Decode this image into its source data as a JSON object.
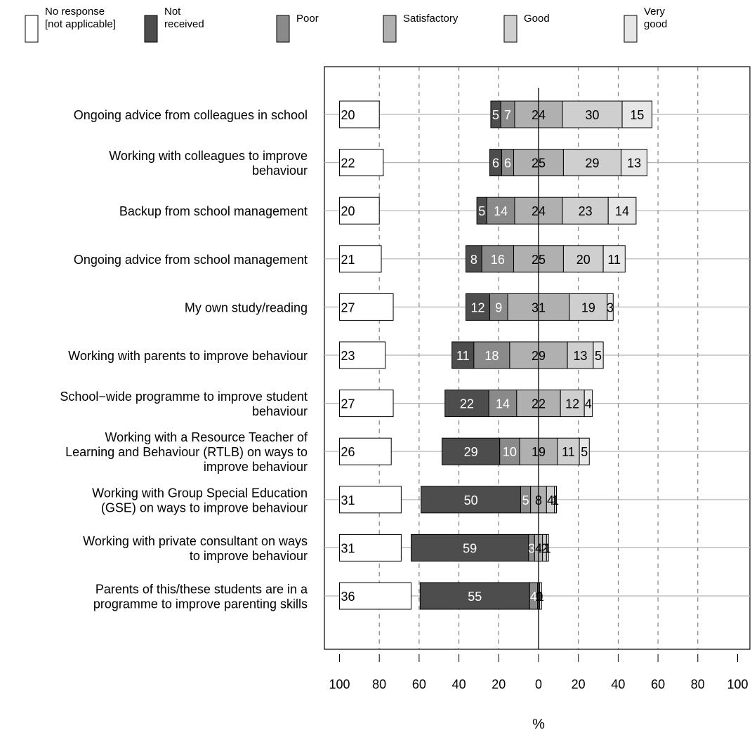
{
  "chart_data": {
    "type": "bar",
    "layout": "diverging-stacked-horizontal",
    "title": "",
    "xlabel": "%",
    "ylabel": "",
    "xlim": [
      -100,
      100
    ],
    "x_ticks": [
      -100,
      -80,
      -60,
      -40,
      -20,
      0,
      20,
      40,
      60,
      80,
      100
    ],
    "x_tick_labels": [
      "100",
      "80",
      "60",
      "40",
      "20",
      "0",
      "20",
      "40",
      "60",
      "80",
      "100"
    ],
    "grid": "dashed vertical lines at ±20, ±40, ±60, ±80",
    "legend_position": "top",
    "legend": [
      {
        "lines": [
          "No response",
          "[not applicable]"
        ],
        "color": "#ffffff"
      },
      {
        "lines": [
          "Not",
          "received"
        ],
        "color": "#4d4d4d"
      },
      {
        "lines": [
          "Poor"
        ],
        "color": "#8a8a8a"
      },
      {
        "lines": [
          "Satisfactory"
        ],
        "color": "#b0b0b0"
      },
      {
        "lines": [
          "Good"
        ],
        "color": "#cfcfcf"
      },
      {
        "lines": [
          "Very",
          "good"
        ],
        "color": "#e6e6e6"
      }
    ],
    "series": [
      {
        "name": "Not received",
        "color": "#4d4d4d",
        "label_color": "#ffffff",
        "side": "negative"
      },
      {
        "name": "Poor",
        "color": "#8a8a8a",
        "label_color": "#ffffff",
        "side": "negative"
      },
      {
        "name": "Satisfactory",
        "color": "#b0b0b0",
        "label_color": "#000000",
        "side": "centered"
      },
      {
        "name": "Good",
        "color": "#cfcfcf",
        "label_color": "#000000",
        "side": "positive"
      },
      {
        "name": "Very good",
        "color": "#e6e6e6",
        "label_color": "#000000",
        "side": "positive"
      }
    ],
    "no_response_series": {
      "name": "No response [not applicable]",
      "color": "#ffffff"
    },
    "categories": [
      {
        "lines": [
          "Ongoing advice from colleagues in school"
        ],
        "no_response": 20,
        "values": [
          5,
          7,
          24,
          30,
          15
        ]
      },
      {
        "lines": [
          "Working with colleagues to improve",
          "behaviour"
        ],
        "no_response": 22,
        "values": [
          6,
          6,
          25,
          29,
          13
        ]
      },
      {
        "lines": [
          "Backup from school management"
        ],
        "no_response": 20,
        "values": [
          5,
          14,
          24,
          23,
          14
        ]
      },
      {
        "lines": [
          "Ongoing advice from school management"
        ],
        "no_response": 21,
        "values": [
          8,
          16,
          25,
          20,
          11
        ]
      },
      {
        "lines": [
          "My own study/reading"
        ],
        "no_response": 27,
        "values": [
          12,
          9,
          31,
          19,
          3
        ]
      },
      {
        "lines": [
          "Working with parents to improve behaviour"
        ],
        "no_response": 23,
        "values": [
          11,
          18,
          29,
          13,
          5
        ]
      },
      {
        "lines": [
          "School−wide programme to improve student",
          "behaviour"
        ],
        "no_response": 27,
        "values": [
          22,
          14,
          22,
          12,
          4
        ]
      },
      {
        "lines": [
          "Working with a Resource Teacher of",
          "Learning and Behaviour (RTLB) on ways to",
          "improve behaviour"
        ],
        "no_response": 26,
        "values": [
          29,
          10,
          19,
          11,
          5
        ]
      },
      {
        "lines": [
          "Working with Group Special Education",
          "(GSE) on ways to improve behaviour"
        ],
        "no_response": 31,
        "values": [
          50,
          5,
          8,
          4,
          1
        ]
      },
      {
        "lines": [
          "Working with private consultant on ways",
          "to improve behaviour"
        ],
        "no_response": 31,
        "values": [
          59,
          3,
          4,
          2,
          1
        ]
      },
      {
        "lines": [
          "Parents of this/these students are in a",
          "programme to improve parenting skills"
        ],
        "no_response": 36,
        "values": [
          55,
          4,
          1,
          0,
          1
        ]
      }
    ]
  }
}
